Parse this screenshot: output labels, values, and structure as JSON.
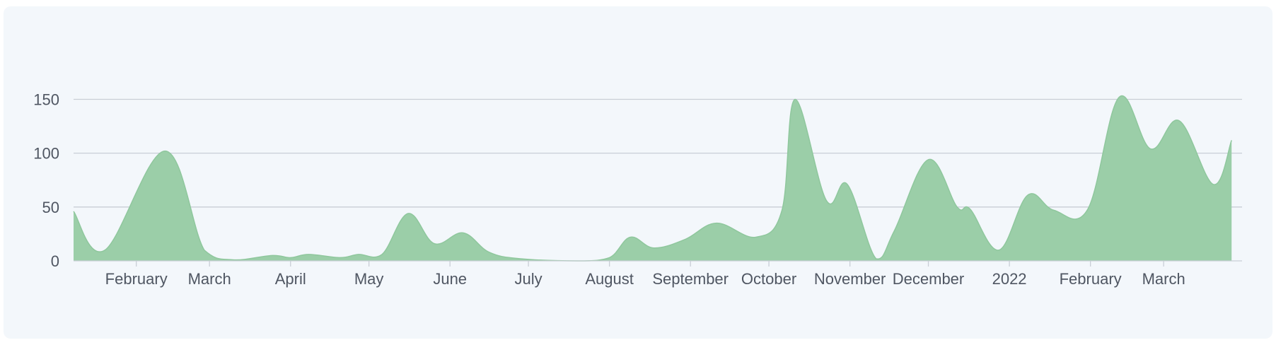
{
  "chart_data": {
    "type": "area",
    "title": "",
    "xlabel": "",
    "ylabel": "",
    "ylim": [
      0,
      170
    ],
    "yticks": [
      0,
      50,
      100,
      150
    ],
    "grid": true,
    "colors": {
      "fill": "#9bcea8",
      "stroke": "#8fc79d",
      "grid": "#c9ced6",
      "text": "#4f5662",
      "background": "#f3f7fb"
    },
    "x_tick_labels": [
      "February",
      "March",
      "April",
      "May",
      "June",
      "July",
      "August",
      "September",
      "October",
      "November",
      "December",
      "2022",
      "February",
      "March"
    ],
    "x_tick_dates": [
      "2021-02-01",
      "2021-03-01",
      "2021-04-01",
      "2021-05-01",
      "2021-06-01",
      "2021-07-01",
      "2021-08-01",
      "2021-09-01",
      "2021-10-01",
      "2021-11-01",
      "2021-12-01",
      "2022-01-01",
      "2022-02-01",
      "2022-03-01"
    ],
    "x_range": [
      "2021-01-08",
      "2022-03-31"
    ],
    "series": [
      {
        "points": [
          [
            "2021-01-08",
            46
          ],
          [
            "2021-01-20",
            10
          ],
          [
            "2021-02-12",
            102
          ],
          [
            "2021-02-27",
            10
          ],
          [
            "2021-03-10",
            1
          ],
          [
            "2021-03-25",
            5
          ],
          [
            "2021-04-01",
            3
          ],
          [
            "2021-04-08",
            6
          ],
          [
            "2021-04-20",
            3
          ],
          [
            "2021-04-27",
            6
          ],
          [
            "2021-05-06",
            6
          ],
          [
            "2021-05-16",
            44
          ],
          [
            "2021-05-26",
            16
          ],
          [
            "2021-06-06",
            26
          ],
          [
            "2021-06-16",
            8
          ],
          [
            "2021-06-28",
            2
          ],
          [
            "2021-07-20",
            0
          ],
          [
            "2021-08-01",
            3
          ],
          [
            "2021-08-09",
            22
          ],
          [
            "2021-08-18",
            12
          ],
          [
            "2021-08-30",
            20
          ],
          [
            "2021-09-11",
            35
          ],
          [
            "2021-09-26",
            22
          ],
          [
            "2021-10-06",
            47
          ],
          [
            "2021-10-11",
            150
          ],
          [
            "2021-10-23",
            56
          ],
          [
            "2021-10-31",
            71
          ],
          [
            "2021-11-11",
            2
          ],
          [
            "2021-11-18",
            28
          ],
          [
            "2021-12-01",
            94
          ],
          [
            "2021-12-12",
            50
          ],
          [
            "2021-12-17",
            48
          ],
          [
            "2021-12-28",
            10
          ],
          [
            "2022-01-08",
            61
          ],
          [
            "2022-01-18",
            47
          ],
          [
            "2022-01-31",
            48
          ],
          [
            "2022-02-12",
            152
          ],
          [
            "2022-02-24",
            104
          ],
          [
            "2022-03-07",
            130
          ],
          [
            "2022-03-20",
            71
          ],
          [
            "2022-03-27",
            112
          ]
        ]
      }
    ]
  }
}
